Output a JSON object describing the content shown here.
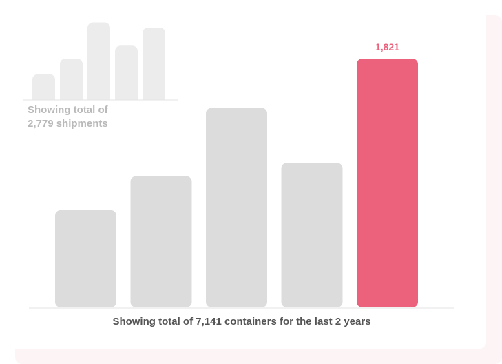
{
  "colors": {
    "bar_default": "#dcdcdc",
    "bar_highlight": "#ec627d",
    "mini_bar": "#ececec",
    "baseline": "#e3e3e3",
    "value_label": "#ec627d"
  },
  "chart_data": [
    {
      "type": "bar",
      "categories": [
        "",
        "",
        "",
        "",
        ""
      ],
      "values": [
        1,
        1.6,
        3,
        2.1,
        2.8
      ],
      "ylim": [
        0,
        3.2
      ],
      "grid": false,
      "caption_line1": "Showing total of",
      "caption_line2": "2,779 shipments"
    },
    {
      "type": "bar",
      "categories": [
        "",
        "",
        "",
        "",
        ""
      ],
      "values": [
        712,
        961,
        1460,
        1058,
        1821
      ],
      "highlight_index": 4,
      "highlight_label": "1,821",
      "ylim": [
        0,
        1821
      ],
      "grid": false,
      "caption": "Showing total of 7,141 containers for the last 2 years"
    }
  ]
}
